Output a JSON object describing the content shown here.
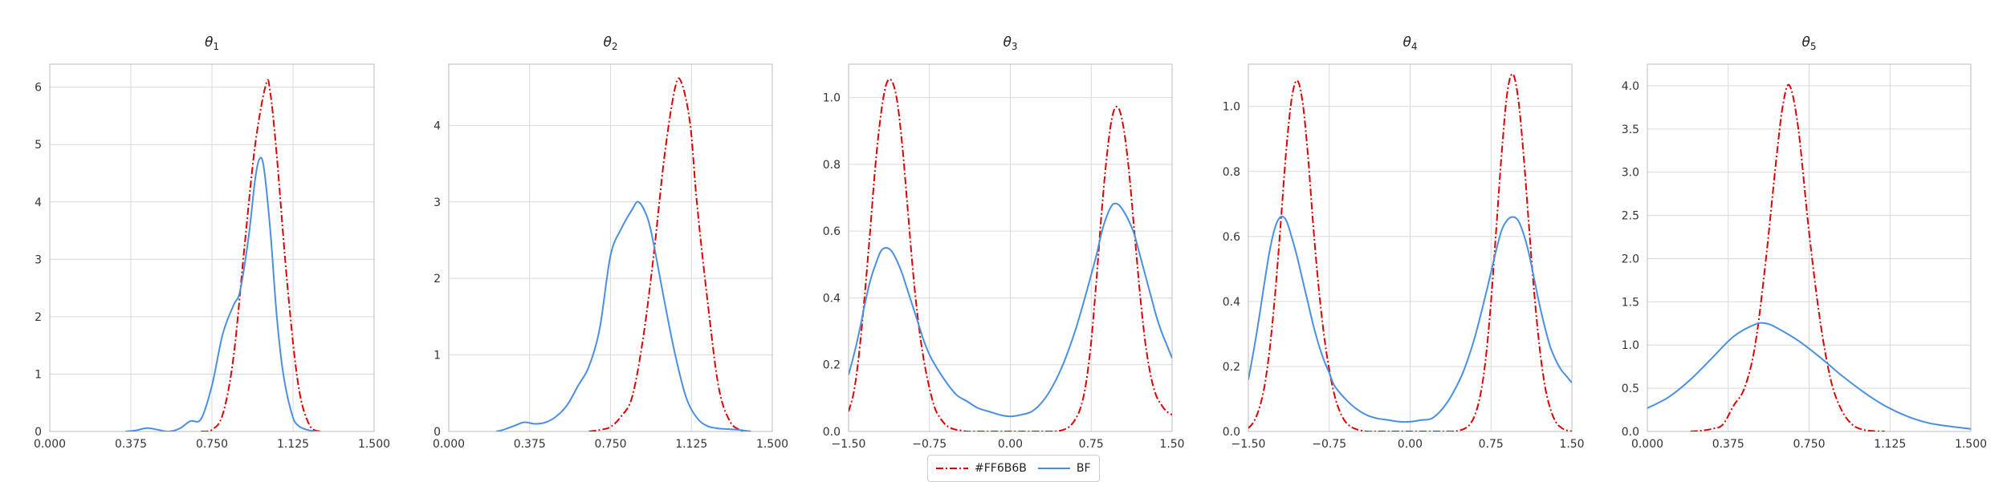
{
  "colors": {
    "series_a": "#e00000",
    "series_b": "#4a90e2",
    "grid": "#d9d9d9",
    "axis": "#bbbbbb"
  },
  "legend": {
    "placement": "bottom-center",
    "entries": [
      "#FF6B6B",
      "BF"
    ]
  },
  "chart_data": [
    {
      "type": "line",
      "title": "θ",
      "title_sub": "1",
      "xlim": [
        0,
        1.5
      ],
      "ylim": [
        0,
        6.4
      ],
      "xticks": [
        "0.000",
        "0.375",
        "0.750",
        "1.125",
        "1.500"
      ],
      "yticks": [
        "0",
        "1",
        "2",
        "3",
        "4",
        "5",
        "6"
      ],
      "series": [
        {
          "name": "#FF6B6B",
          "style": "dashdot",
          "x": [
            0.7,
            0.75,
            0.8,
            0.85,
            0.9,
            0.95,
            1.0,
            1.02,
            1.05,
            1.1,
            1.15,
            1.2,
            1.25
          ],
          "y": [
            0,
            0.03,
            0.3,
            1.3,
            3.2,
            5.0,
            6.05,
            5.9,
            4.8,
            2.5,
            0.8,
            0.12,
            0
          ]
        },
        {
          "name": "BF",
          "style": "solid",
          "x": [
            0.35,
            0.4,
            0.45,
            0.5,
            0.55,
            0.6,
            0.65,
            0.7,
            0.75,
            0.8,
            0.85,
            0.88,
            0.92,
            0.95,
            0.97,
            0.99,
            1.02,
            1.05,
            1.08,
            1.12,
            1.15,
            1.2,
            1.25
          ],
          "y": [
            0,
            0.02,
            0.06,
            0.03,
            0,
            0.05,
            0.18,
            0.22,
            0.8,
            1.7,
            2.2,
            2.45,
            3.4,
            4.4,
            4.75,
            4.6,
            3.5,
            2.0,
            1.0,
            0.3,
            0.1,
            0.02,
            0
          ]
        }
      ]
    },
    {
      "type": "line",
      "title": "θ",
      "title_sub": "2",
      "xlim": [
        0,
        1.5
      ],
      "ylim": [
        0,
        4.8
      ],
      "xticks": [
        "0.000",
        "0.375",
        "0.750",
        "1.125",
        "1.500"
      ],
      "yticks": [
        "0",
        "1",
        "2",
        "3",
        "4"
      ],
      "series": [
        {
          "name": "#FF6B6B",
          "style": "dashdot",
          "x": [
            0.65,
            0.7,
            0.75,
            0.8,
            0.85,
            0.9,
            0.95,
            1.0,
            1.05,
            1.08,
            1.12,
            1.15,
            1.2,
            1.25,
            1.3,
            1.35,
            1.4
          ],
          "y": [
            0,
            0.02,
            0.06,
            0.2,
            0.45,
            1.2,
            2.3,
            3.6,
            4.5,
            4.55,
            4.0,
            3.0,
            1.7,
            0.6,
            0.15,
            0.02,
            0
          ]
        },
        {
          "name": "BF",
          "style": "solid",
          "x": [
            0.22,
            0.25,
            0.3,
            0.35,
            0.4,
            0.45,
            0.5,
            0.55,
            0.6,
            0.65,
            0.7,
            0.75,
            0.8,
            0.85,
            0.88,
            0.92,
            0.95,
            1.0,
            1.05,
            1.1,
            1.15,
            1.2,
            1.25,
            1.3,
            1.35,
            1.4
          ],
          "y": [
            0,
            0.02,
            0.07,
            0.12,
            0.1,
            0.12,
            0.2,
            0.35,
            0.6,
            0.85,
            1.35,
            2.3,
            2.65,
            2.9,
            3.0,
            2.8,
            2.45,
            1.7,
            1.0,
            0.45,
            0.18,
            0.07,
            0.04,
            0.03,
            0.02,
            0
          ]
        }
      ]
    },
    {
      "type": "line",
      "title": "θ",
      "title_sub": "3",
      "xlim": [
        -1.5,
        1.5
      ],
      "ylim": [
        0,
        1.1
      ],
      "xticks": [
        "−1.50",
        "−0.75",
        "0.00",
        "0.75",
        "1.50"
      ],
      "yticks": [
        "0.0",
        "0.2",
        "0.4",
        "0.6",
        "0.8",
        "1.0"
      ],
      "series": [
        {
          "name": "#FF6B6B",
          "style": "dashdot",
          "x": [
            -1.5,
            -1.45,
            -1.4,
            -1.35,
            -1.3,
            -1.25,
            -1.2,
            -1.15,
            -1.1,
            -1.05,
            -1.0,
            -0.95,
            -0.9,
            -0.85,
            -0.8,
            -0.75,
            -0.7,
            -0.65,
            -0.6,
            -0.55,
            -0.5,
            -0.45,
            -0.4,
            -0.3,
            -0.2,
            0,
            0.2,
            0.3,
            0.4,
            0.45,
            0.5,
            0.55,
            0.6,
            0.65,
            0.7,
            0.75,
            0.8,
            0.85,
            0.9,
            0.95,
            1.0,
            1.05,
            1.1,
            1.15,
            1.2,
            1.25,
            1.3,
            1.35,
            1.4,
            1.45,
            1.5
          ],
          "y": [
            0.06,
            0.12,
            0.24,
            0.41,
            0.6,
            0.8,
            0.95,
            1.04,
            1.05,
            0.99,
            0.85,
            0.66,
            0.47,
            0.32,
            0.21,
            0.13,
            0.07,
            0.04,
            0.02,
            0.01,
            0.005,
            0.003,
            0,
            0,
            0,
            0,
            0,
            0,
            0,
            0.002,
            0.006,
            0.015,
            0.035,
            0.07,
            0.14,
            0.27,
            0.46,
            0.67,
            0.84,
            0.95,
            0.97,
            0.91,
            0.78,
            0.6,
            0.42,
            0.27,
            0.17,
            0.11,
            0.08,
            0.06,
            0.05
          ]
        },
        {
          "name": "BF",
          "style": "solid",
          "x": [
            -1.5,
            -1.45,
            -1.4,
            -1.35,
            -1.3,
            -1.25,
            -1.2,
            -1.15,
            -1.1,
            -1.05,
            -1.0,
            -0.95,
            -0.9,
            -0.85,
            -0.8,
            -0.75,
            -0.7,
            -0.6,
            -0.5,
            -0.4,
            -0.3,
            -0.2,
            -0.1,
            0,
            0.1,
            0.2,
            0.3,
            0.4,
            0.5,
            0.6,
            0.7,
            0.75,
            0.8,
            0.85,
            0.9,
            0.95,
            1.0,
            1.05,
            1.1,
            1.15,
            1.2,
            1.25,
            1.3,
            1.35,
            1.4,
            1.45,
            1.5
          ],
          "y": [
            0.17,
            0.23,
            0.3,
            0.38,
            0.45,
            0.5,
            0.54,
            0.55,
            0.54,
            0.51,
            0.47,
            0.42,
            0.37,
            0.32,
            0.27,
            0.23,
            0.2,
            0.15,
            0.11,
            0.09,
            0.07,
            0.06,
            0.05,
            0.045,
            0.05,
            0.06,
            0.09,
            0.14,
            0.21,
            0.3,
            0.41,
            0.47,
            0.53,
            0.6,
            0.65,
            0.68,
            0.68,
            0.66,
            0.63,
            0.59,
            0.53,
            0.47,
            0.41,
            0.35,
            0.3,
            0.26,
            0.22
          ]
        }
      ]
    },
    {
      "type": "line",
      "title": "θ",
      "title_sub": "4",
      "xlim": [
        -1.5,
        1.5
      ],
      "ylim": [
        0,
        1.13
      ],
      "xticks": [
        "−1.50",
        "−0.75",
        "0.00",
        "0.75",
        "1.50"
      ],
      "yticks": [
        "0.0",
        "0.2",
        "0.4",
        "0.6",
        "0.8",
        "1.0"
      ],
      "series": [
        {
          "name": "#FF6B6B",
          "style": "dashdot",
          "x": [
            -1.5,
            -1.45,
            -1.4,
            -1.35,
            -1.3,
            -1.25,
            -1.2,
            -1.15,
            -1.1,
            -1.05,
            -1.0,
            -0.95,
            -0.9,
            -0.85,
            -0.8,
            -0.75,
            -0.7,
            -0.65,
            -0.6,
            -0.55,
            -0.5,
            -0.45,
            -0.4,
            -0.3,
            -0.2,
            0,
            0.2,
            0.3,
            0.4,
            0.45,
            0.5,
            0.55,
            0.6,
            0.65,
            0.7,
            0.75,
            0.8,
            0.85,
            0.9,
            0.95,
            1.0,
            1.05,
            1.1,
            1.15,
            1.2,
            1.25,
            1.3,
            1.35,
            1.4,
            1.45,
            1.5
          ],
          "y": [
            0.01,
            0.03,
            0.07,
            0.14,
            0.26,
            0.43,
            0.64,
            0.86,
            1.02,
            1.08,
            1.02,
            0.86,
            0.64,
            0.45,
            0.3,
            0.19,
            0.11,
            0.06,
            0.03,
            0.015,
            0.007,
            0.003,
            0,
            0,
            0,
            0,
            0,
            0,
            0,
            0.003,
            0.008,
            0.02,
            0.05,
            0.11,
            0.22,
            0.4,
            0.63,
            0.86,
            1.04,
            1.1,
            1.03,
            0.86,
            0.64,
            0.43,
            0.26,
            0.14,
            0.07,
            0.03,
            0.012,
            0.004,
            0
          ]
        },
        {
          "name": "BF",
          "style": "solid",
          "x": [
            -1.5,
            -1.45,
            -1.4,
            -1.35,
            -1.3,
            -1.25,
            -1.2,
            -1.15,
            -1.1,
            -1.05,
            -1.0,
            -0.95,
            -0.9,
            -0.85,
            -0.8,
            -0.75,
            -0.7,
            -0.6,
            -0.5,
            -0.4,
            -0.3,
            -0.2,
            -0.1,
            0,
            0.1,
            0.2,
            0.3,
            0.4,
            0.5,
            0.6,
            0.7,
            0.75,
            0.8,
            0.85,
            0.9,
            0.95,
            1.0,
            1.05,
            1.1,
            1.15,
            1.2,
            1.25,
            1.3,
            1.35,
            1.4,
            1.45,
            1.5
          ],
          "y": [
            0.16,
            0.25,
            0.35,
            0.46,
            0.56,
            0.63,
            0.66,
            0.65,
            0.6,
            0.54,
            0.47,
            0.4,
            0.33,
            0.27,
            0.22,
            0.18,
            0.14,
            0.1,
            0.07,
            0.05,
            0.04,
            0.035,
            0.03,
            0.03,
            0.035,
            0.04,
            0.07,
            0.12,
            0.19,
            0.29,
            0.42,
            0.49,
            0.56,
            0.62,
            0.65,
            0.66,
            0.65,
            0.61,
            0.55,
            0.47,
            0.39,
            0.32,
            0.26,
            0.22,
            0.19,
            0.17,
            0.15
          ]
        }
      ]
    },
    {
      "type": "line",
      "title": "θ",
      "title_sub": "5",
      "xlim": [
        0,
        1.5
      ],
      "ylim": [
        0,
        4.25
      ],
      "xticks": [
        "0.000",
        "0.375",
        "0.750",
        "1.125",
        "1.500"
      ],
      "yticks": [
        "0.0",
        "0.5",
        "1.0",
        "1.5",
        "2.0",
        "2.5",
        "3.0",
        "3.5",
        "4.0"
      ],
      "series": [
        {
          "name": "#FF6B6B",
          "style": "dashdot",
          "x": [
            0.2,
            0.25,
            0.3,
            0.35,
            0.4,
            0.45,
            0.5,
            0.55,
            0.6,
            0.63,
            0.66,
            0.7,
            0.75,
            0.8,
            0.85,
            0.9,
            0.95,
            1.0,
            1.05,
            1.1
          ],
          "y": [
            0,
            0.01,
            0.03,
            0.08,
            0.3,
            0.5,
            1.0,
            2.0,
            3.2,
            3.8,
            4.0,
            3.5,
            2.3,
            1.3,
            0.6,
            0.25,
            0.08,
            0.02,
            0.005,
            0
          ]
        },
        {
          "name": "BF",
          "style": "solid",
          "x": [
            0,
            0.1,
            0.2,
            0.3,
            0.4,
            0.5,
            0.55,
            0.6,
            0.7,
            0.8,
            0.9,
            1.0,
            1.1,
            1.2,
            1.3,
            1.4,
            1.5
          ],
          "y": [
            0.27,
            0.4,
            0.6,
            0.85,
            1.1,
            1.24,
            1.25,
            1.2,
            1.05,
            0.86,
            0.65,
            0.46,
            0.3,
            0.18,
            0.1,
            0.06,
            0.03
          ]
        }
      ]
    }
  ]
}
